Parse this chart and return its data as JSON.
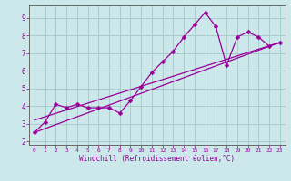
{
  "x_data": [
    0,
    1,
    2,
    3,
    4,
    5,
    6,
    7,
    8,
    9,
    10,
    11,
    12,
    13,
    14,
    15,
    16,
    17,
    18,
    19,
    20,
    21,
    22,
    23
  ],
  "y_data": [
    2.5,
    3.1,
    4.1,
    3.9,
    4.1,
    3.9,
    3.9,
    3.9,
    3.6,
    4.3,
    5.1,
    5.9,
    6.5,
    7.1,
    7.9,
    8.6,
    9.3,
    8.5,
    6.3,
    7.9,
    8.2,
    7.9,
    7.4,
    7.6
  ],
  "trend1_x": [
    0,
    23
  ],
  "trend1_y": [
    2.5,
    7.6
  ],
  "trend2_x": [
    0,
    23
  ],
  "trend2_y": [
    3.2,
    7.6
  ],
  "bg_color": "#cce8ea",
  "grid_color": "#aaccce",
  "line_color": "#990099",
  "spine_color": "#666666",
  "xlabel": "Windchill (Refroidissement éolien,°C)",
  "xlim": [
    -0.5,
    23.5
  ],
  "ylim": [
    1.8,
    9.7
  ],
  "yticks": [
    2,
    3,
    4,
    5,
    6,
    7,
    8,
    9
  ],
  "xticks": [
    0,
    1,
    2,
    3,
    4,
    5,
    6,
    7,
    8,
    9,
    10,
    11,
    12,
    13,
    14,
    15,
    16,
    17,
    18,
    19,
    20,
    21,
    22,
    23
  ]
}
